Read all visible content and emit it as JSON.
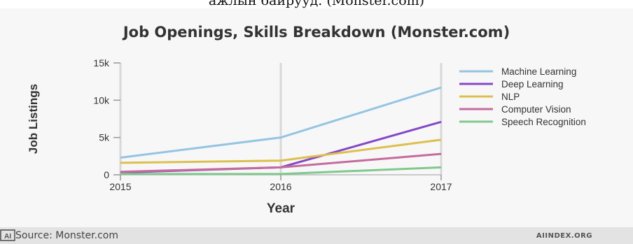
{
  "top_caption": "ажлын байрууд. (Monster.com)",
  "footer": {
    "source": "Source: Monster.com",
    "brand": "AIINDEX.ORG"
  },
  "chart_data": {
    "type": "line",
    "title": "Job Openings, Skills Breakdown (Monster.com)",
    "xlabel": "Year",
    "ylabel": "Job Listings",
    "x": [
      2015,
      2016,
      2017
    ],
    "x_tick_labels": [
      "2015",
      "2016",
      "2017"
    ],
    "y_ticks": [
      0,
      5000,
      10000,
      15000
    ],
    "y_tick_labels": [
      "0",
      "5k",
      "10k",
      "15k"
    ],
    "ylim": [
      0,
      15000
    ],
    "grid": "vertical",
    "legend_position": "right",
    "series": [
      {
        "name": "Machine Learning",
        "color": "#93c5e3",
        "values": [
          2300,
          5000,
          11700
        ]
      },
      {
        "name": "Deep Learning",
        "color": "#8448c8",
        "values": [
          300,
          1000,
          7100
        ]
      },
      {
        "name": "NLP",
        "color": "#dcc04e",
        "values": [
          1600,
          1900,
          4700
        ]
      },
      {
        "name": "Computer Vision",
        "color": "#c46c9c",
        "values": [
          400,
          1000,
          2800
        ]
      },
      {
        "name": "Speech Recognition",
        "color": "#7fc98d",
        "values": [
          100,
          100,
          1000
        ]
      }
    ]
  }
}
